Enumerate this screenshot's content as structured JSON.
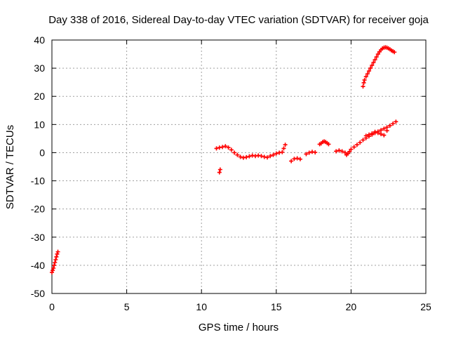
{
  "chart_data": {
    "type": "scatter",
    "title": "Day 338 of 2016, Sidereal Day-to-day VTEC variation (SDTVAR) for receiver goja",
    "xlabel": "GPS time / hours",
    "ylabel": "SDTVAR / TECUs",
    "xlim": [
      0,
      25
    ],
    "ylim": [
      -50,
      40
    ],
    "xticks": [
      0,
      5,
      10,
      15,
      20,
      25
    ],
    "yticks": [
      -50,
      -40,
      -30,
      -20,
      -10,
      0,
      10,
      20,
      30,
      40
    ],
    "grid": true,
    "marker": "plus",
    "color": "#ff0000",
    "series": [
      {
        "name": "SDTVAR",
        "points": [
          [
            0.0,
            -42.5
          ],
          [
            0.05,
            -41.8
          ],
          [
            0.1,
            -41.0
          ],
          [
            0.15,
            -40.0
          ],
          [
            0.2,
            -39.0
          ],
          [
            0.25,
            -38.0
          ],
          [
            0.3,
            -37.0
          ],
          [
            0.35,
            -36.0
          ],
          [
            0.4,
            -35.2
          ],
          [
            11.2,
            -7.0
          ],
          [
            11.25,
            -6.0
          ],
          [
            11.0,
            1.5
          ],
          [
            11.2,
            1.8
          ],
          [
            11.4,
            2.0
          ],
          [
            11.6,
            2.3
          ],
          [
            11.8,
            1.8
          ],
          [
            12.0,
            1.0
          ],
          [
            12.2,
            0.0
          ],
          [
            12.4,
            -0.8
          ],
          [
            12.6,
            -1.5
          ],
          [
            12.8,
            -1.8
          ],
          [
            13.0,
            -1.6
          ],
          [
            13.2,
            -1.3
          ],
          [
            13.4,
            -1.0
          ],
          [
            13.6,
            -1.2
          ],
          [
            13.8,
            -1.0
          ],
          [
            14.0,
            -1.2
          ],
          [
            14.2,
            -1.5
          ],
          [
            14.4,
            -1.7
          ],
          [
            14.6,
            -1.2
          ],
          [
            14.8,
            -0.8
          ],
          [
            15.0,
            -0.3
          ],
          [
            15.2,
            0.0
          ],
          [
            15.4,
            0.2
          ],
          [
            15.5,
            1.5
          ],
          [
            15.6,
            2.8
          ],
          [
            16.0,
            -3.0
          ],
          [
            16.2,
            -2.2
          ],
          [
            16.4,
            -2.0
          ],
          [
            16.6,
            -2.3
          ],
          [
            17.0,
            -0.5
          ],
          [
            17.2,
            0.0
          ],
          [
            17.4,
            0.3
          ],
          [
            17.6,
            0.1
          ],
          [
            17.9,
            3.0
          ],
          [
            18.0,
            3.3
          ],
          [
            18.1,
            3.8
          ],
          [
            18.2,
            4.0
          ],
          [
            18.3,
            3.8
          ],
          [
            18.4,
            3.4
          ],
          [
            18.5,
            3.0
          ],
          [
            19.0,
            0.5
          ],
          [
            19.2,
            0.8
          ],
          [
            19.4,
            0.5
          ],
          [
            19.6,
            0.0
          ],
          [
            19.7,
            -0.8
          ],
          [
            19.8,
            -0.3
          ],
          [
            19.9,
            0.4
          ],
          [
            20.0,
            1.2
          ],
          [
            20.2,
            2.0
          ],
          [
            20.4,
            2.8
          ],
          [
            20.6,
            3.6
          ],
          [
            20.8,
            4.5
          ],
          [
            21.0,
            5.2
          ],
          [
            21.2,
            5.8
          ],
          [
            21.4,
            6.4
          ],
          [
            21.6,
            7.0
          ],
          [
            21.8,
            7.5
          ],
          [
            22.0,
            8.0
          ],
          [
            22.2,
            8.5
          ],
          [
            22.4,
            9.0
          ],
          [
            22.6,
            9.6
          ],
          [
            22.8,
            10.3
          ],
          [
            23.0,
            11.0
          ],
          [
            21.0,
            6.0
          ],
          [
            21.2,
            6.4
          ],
          [
            21.4,
            6.8
          ],
          [
            21.6,
            7.4
          ],
          [
            21.8,
            7.0
          ],
          [
            22.0,
            6.6
          ],
          [
            22.2,
            6.2
          ],
          [
            22.4,
            7.8
          ],
          [
            20.8,
            23.5
          ],
          [
            20.85,
            24.8
          ],
          [
            20.9,
            25.8
          ],
          [
            21.0,
            27.0
          ],
          [
            21.1,
            28.0
          ],
          [
            21.2,
            29.0
          ],
          [
            21.3,
            30.0
          ],
          [
            21.4,
            31.0
          ],
          [
            21.5,
            32.0
          ],
          [
            21.6,
            33.0
          ],
          [
            21.7,
            34.0
          ],
          [
            21.8,
            35.0
          ],
          [
            21.9,
            35.8
          ],
          [
            22.0,
            36.5
          ],
          [
            22.1,
            37.0
          ],
          [
            22.2,
            37.3
          ],
          [
            22.3,
            37.4
          ],
          [
            22.4,
            37.3
          ],
          [
            22.5,
            37.0
          ],
          [
            22.6,
            36.7
          ],
          [
            22.7,
            36.3
          ],
          [
            22.8,
            36.0
          ],
          [
            22.9,
            35.7
          ]
        ]
      }
    ]
  }
}
